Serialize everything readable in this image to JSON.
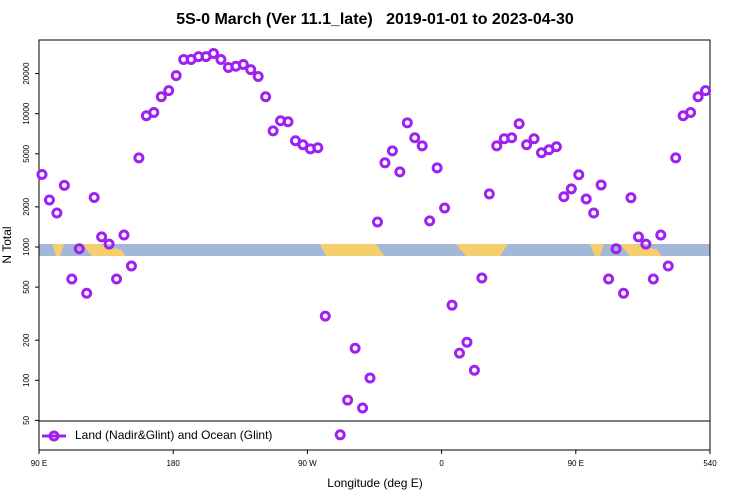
{
  "chart_data": {
    "type": "scatter",
    "title": "5S-0 March (Ver 11.1_late)   2019-01-01 to 2023-04-30",
    "xlabel": "Longitude (deg E)",
    "ylabel": "N Total",
    "log_y": true,
    "legend": "lower left",
    "xlim": [
      90,
      540
    ],
    "xticks": [
      {
        "value": 90,
        "label": "90 E"
      },
      180,
      {
        "value": 270,
        "label": "90 W"
      },
      {
        "value": 360,
        "label": "0"
      },
      {
        "value": 450,
        "label": "90 E"
      },
      540
    ],
    "ylim": [
      30,
      35700
    ],
    "yticks": [
      50,
      100,
      200,
      500,
      1000,
      2000,
      5000,
      10000,
      20000
    ],
    "series": [
      {
        "name": "Land (Nadir&Glint) and Ocean (Glint)",
        "color": "#a020f0",
        "x": [
          92,
          97,
          102,
          107,
          112,
          117,
          122,
          127,
          132,
          137,
          142,
          147,
          152,
          157,
          162,
          167,
          172,
          177,
          182,
          187,
          192,
          197,
          202,
          207,
          212,
          217,
          222,
          227,
          232,
          237,
          242,
          247,
          252,
          257,
          262,
          267,
          272,
          277,
          282,
          292,
          297,
          302,
          307,
          312,
          317,
          322,
          327,
          332,
          337,
          342,
          347,
          352,
          357,
          362,
          367,
          372,
          377,
          382,
          387,
          392,
          397,
          402,
          407,
          412,
          417,
          422,
          427,
          432,
          437,
          442,
          447,
          452,
          457,
          462,
          467,
          472,
          477,
          482,
          487,
          492,
          497,
          502,
          507,
          512,
          517,
          522,
          527,
          532,
          537
        ],
        "values": [
          3500,
          2250,
          1800,
          2900,
          575,
          970,
          450,
          2350,
          1190,
          1050,
          575,
          1230,
          720,
          4660,
          9650,
          10200,
          13400,
          14900,
          19300,
          25500,
          25500,
          26800,
          26800,
          28300,
          25500,
          22200,
          22700,
          23400,
          21400,
          19000,
          13400,
          7430,
          8850,
          8700,
          6270,
          5850,
          5450,
          5550,
          303,
          39,
          71,
          174,
          62,
          104,
          1540,
          4280,
          5260,
          3660,
          8540,
          6600,
          5740,
          1570,
          3920,
          1960,
          366,
          160,
          193,
          119,
          585,
          2500,
          5740,
          6480,
          6600,
          8400,
          5850,
          6480,
          5090,
          5360,
          5650,
          2380,
          2730,
          3480,
          2290,
          1800,
          2920,
          575,
          970,
          450,
          2340,
          1190,
          1050,
          575,
          1230,
          720,
          4660,
          9650,
          10200,
          13400,
          14900
        ]
      }
    ]
  }
}
